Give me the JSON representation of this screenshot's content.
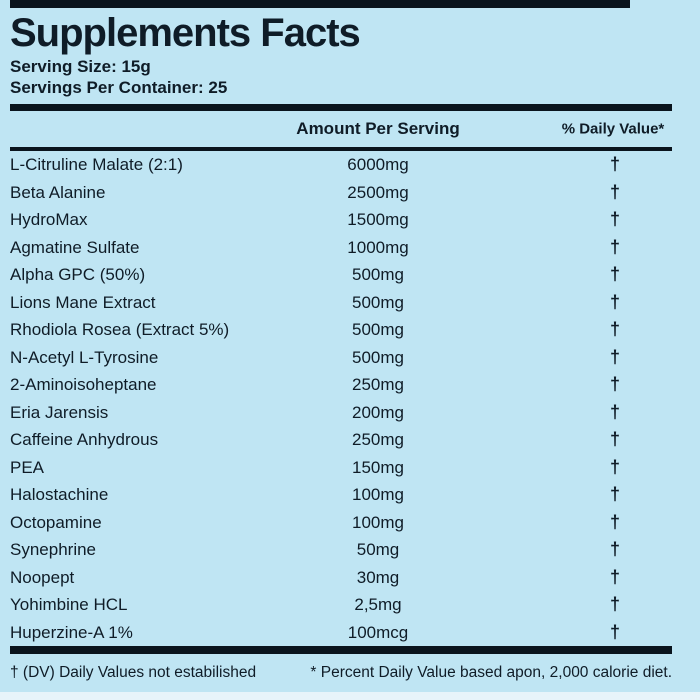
{
  "label": {
    "title": "Supplements Facts",
    "serving_size": "Serving Size: 15g",
    "servings_per_container": "Servings Per Container: 25",
    "columns": {
      "amount": "Amount Per Serving",
      "daily_value": "% Daily Value*"
    },
    "rows": [
      {
        "name": "L-Citruline Malate (2:1)",
        "amount": "6000mg",
        "dv": "†"
      },
      {
        "name": "Beta Alanine",
        "amount": "2500mg",
        "dv": "†"
      },
      {
        "name": "HydroMax",
        "amount": "1500mg",
        "dv": "†"
      },
      {
        "name": "Agmatine Sulfate",
        "amount": "1000mg",
        "dv": "†"
      },
      {
        "name": "Alpha GPC (50%)",
        "amount": "500mg",
        "dv": "†"
      },
      {
        "name": "Lions Mane Extract",
        "amount": "500mg",
        "dv": "†"
      },
      {
        "name": "Rhodiola Rosea (Extract 5%)",
        "amount": "500mg",
        "dv": "†"
      },
      {
        "name": "N-Acetyl L-Tyrosine",
        "amount": "500mg",
        "dv": "†"
      },
      {
        "name": "2-Aminoisoheptane",
        "amount": "250mg",
        "dv": "†"
      },
      {
        "name": "Eria Jarensis",
        "amount": "200mg",
        "dv": "†"
      },
      {
        "name": "Caffeine Anhydrous",
        "amount": "250mg",
        "dv": "†"
      },
      {
        "name": "PEA",
        "amount": "150mg",
        "dv": "†"
      },
      {
        "name": "Halostachine",
        "amount": "100mg",
        "dv": "†"
      },
      {
        "name": "Octopamine",
        "amount": "100mg",
        "dv": "†"
      },
      {
        "name": "Synephrine",
        "amount": "50mg",
        "dv": "†"
      },
      {
        "name": "Noopept",
        "amount": "30mg",
        "dv": "†"
      },
      {
        "name": "Yohimbine HCL",
        "amount": "2,5mg",
        "dv": "†"
      },
      {
        "name": "Huperzine-A 1%",
        "amount": "100mcg",
        "dv": "†"
      }
    ],
    "footnotes": {
      "left": "† (DV) Daily Values not estabilished",
      "right": "* Percent Daily Value based apon, 2,000 calorie diet."
    },
    "colors": {
      "background": "#bfe5f3",
      "text": "#0f1c27",
      "rule": "#0a141d",
      "edge_strip": "#e7f4fa"
    }
  }
}
